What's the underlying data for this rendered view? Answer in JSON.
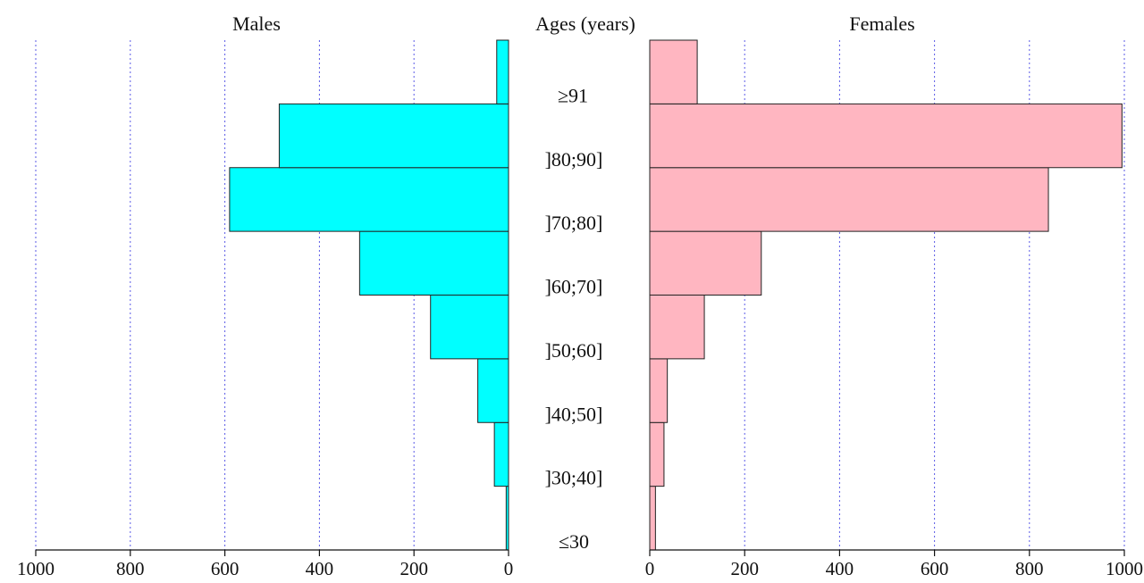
{
  "chart_data": {
    "type": "bar",
    "orientation": "horizontal",
    "subtype": "population-pyramid",
    "center_label": "Ages (years)",
    "categories": [
      "≤30",
      "]30;40]",
      "]40;50]",
      "]50;60]",
      "]60;70]",
      "]70;80]",
      "]80;90]",
      "≥91"
    ],
    "xlim": [
      0,
      1000
    ],
    "xticks": [
      0,
      200,
      400,
      600,
      800,
      1000
    ],
    "grid": true,
    "series": [
      {
        "name": "Males",
        "side": "left",
        "color": "#00ffff",
        "values": [
          5,
          30,
          65,
          165,
          315,
          590,
          485,
          25
        ]
      },
      {
        "name": "Females",
        "side": "right",
        "color": "#ffb6c1",
        "values": [
          12,
          30,
          37,
          115,
          235,
          840,
          995,
          100
        ]
      }
    ]
  }
}
